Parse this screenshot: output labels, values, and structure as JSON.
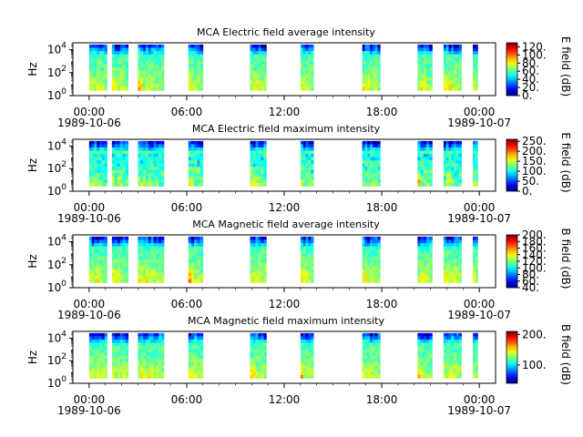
{
  "chart_data": [
    {
      "type": "heatmap",
      "title": "MCA  Electric field average intensity",
      "ylabel": "Hz",
      "cbar_label": "E field (dB)",
      "cbar_range": [
        0,
        130
      ],
      "cbar_ticks": [
        "0.",
        "20.",
        "40.",
        "60.",
        "80.",
        "100.",
        "120."
      ],
      "x_ticks": [
        "00:00",
        "06:00",
        "12:00",
        "18:00",
        "00:00"
      ],
      "date_start": "1989-10-06",
      "date_end": "1989-10-07",
      "y_ticks": [
        "10^0",
        "10^2",
        "10^4"
      ],
      "ylim_log10": [
        0,
        4.6
      ],
      "xlim_hours": [
        -1,
        25
      ],
      "segments_hours": [
        [
          0.0,
          1.1
        ],
        [
          1.4,
          2.4
        ],
        [
          3.0,
          4.6
        ],
        [
          6.1,
          7.0
        ],
        [
          9.9,
          10.9
        ],
        [
          13.0,
          13.8
        ],
        [
          16.8,
          17.9
        ],
        [
          20.2,
          21.1
        ],
        [
          21.8,
          22.9
        ],
        [
          23.6,
          23.9
        ]
      ],
      "dominant_value": 75
    },
    {
      "type": "heatmap",
      "title": "MCA  Electric field maximum intensity",
      "ylabel": "Hz",
      "cbar_label": "E field (dB)",
      "cbar_range": [
        0,
        260
      ],
      "cbar_ticks": [
        "0.",
        "50.",
        "100.",
        "150.",
        "200.",
        "250."
      ],
      "x_ticks": [
        "00:00",
        "06:00",
        "12:00",
        "18:00",
        "00:00"
      ],
      "date_start": "1989-10-06",
      "date_end": "1989-10-07",
      "y_ticks": [
        "10^0",
        "10^2",
        "10^4"
      ],
      "ylim_log10": [
        0,
        4.6
      ],
      "xlim_hours": [
        -1,
        25
      ],
      "segments_hours": [
        [
          0.0,
          1.1
        ],
        [
          1.4,
          2.4
        ],
        [
          3.0,
          4.6
        ],
        [
          6.1,
          7.0
        ],
        [
          9.9,
          10.9
        ],
        [
          13.0,
          13.8
        ],
        [
          16.8,
          17.9
        ],
        [
          20.2,
          21.1
        ],
        [
          21.8,
          22.9
        ],
        [
          23.6,
          23.9
        ]
      ],
      "dominant_value": 110
    },
    {
      "type": "heatmap",
      "title": "MCA  Magnetic field average intensity",
      "ylabel": "Hz",
      "cbar_label": "B field (dB)",
      "cbar_range": [
        40,
        200
      ],
      "cbar_ticks": [
        "40.",
        "60.",
        "80.",
        "100.",
        "120.",
        "140.",
        "160.",
        "180.",
        "200."
      ],
      "x_ticks": [
        "00:00",
        "06:00",
        "12:00",
        "18:00",
        "00:00"
      ],
      "date_start": "1989-10-06",
      "date_end": "1989-10-07",
      "y_ticks": [
        "10^0",
        "10^2",
        "10^4"
      ],
      "ylim_log10": [
        0,
        4.6
      ],
      "xlim_hours": [
        -1,
        25
      ],
      "segments_hours": [
        [
          0.0,
          1.1
        ],
        [
          1.4,
          2.4
        ],
        [
          3.0,
          4.6
        ],
        [
          6.1,
          7.0
        ],
        [
          9.9,
          10.9
        ],
        [
          13.0,
          13.8
        ],
        [
          16.8,
          17.9
        ],
        [
          20.2,
          21.1
        ],
        [
          21.8,
          22.9
        ],
        [
          23.6,
          23.9
        ]
      ],
      "dominant_value": 120
    },
    {
      "type": "heatmap",
      "title": "MCA  Magnetic field maximum intensity",
      "ylabel": "Hz",
      "cbar_label": "B field (dB)",
      "cbar_range": [
        40,
        210
      ],
      "cbar_ticks": [
        "100.",
        "200."
      ],
      "x_ticks": [
        "00:00",
        "06:00",
        "12:00",
        "18:00",
        "00:00"
      ],
      "date_start": "1989-10-06",
      "date_end": "1989-10-07",
      "y_ticks": [
        "10^0",
        "10^2",
        "10^4"
      ],
      "ylim_log10": [
        0,
        4.6
      ],
      "xlim_hours": [
        -1,
        25
      ],
      "segments_hours": [
        [
          0.0,
          1.1
        ],
        [
          1.4,
          2.4
        ],
        [
          3.0,
          4.6
        ],
        [
          6.1,
          7.0
        ],
        [
          9.9,
          10.9
        ],
        [
          13.0,
          13.8
        ],
        [
          16.8,
          17.9
        ],
        [
          20.2,
          21.1
        ],
        [
          21.8,
          22.9
        ],
        [
          23.6,
          23.9
        ]
      ],
      "dominant_value": 125
    }
  ]
}
